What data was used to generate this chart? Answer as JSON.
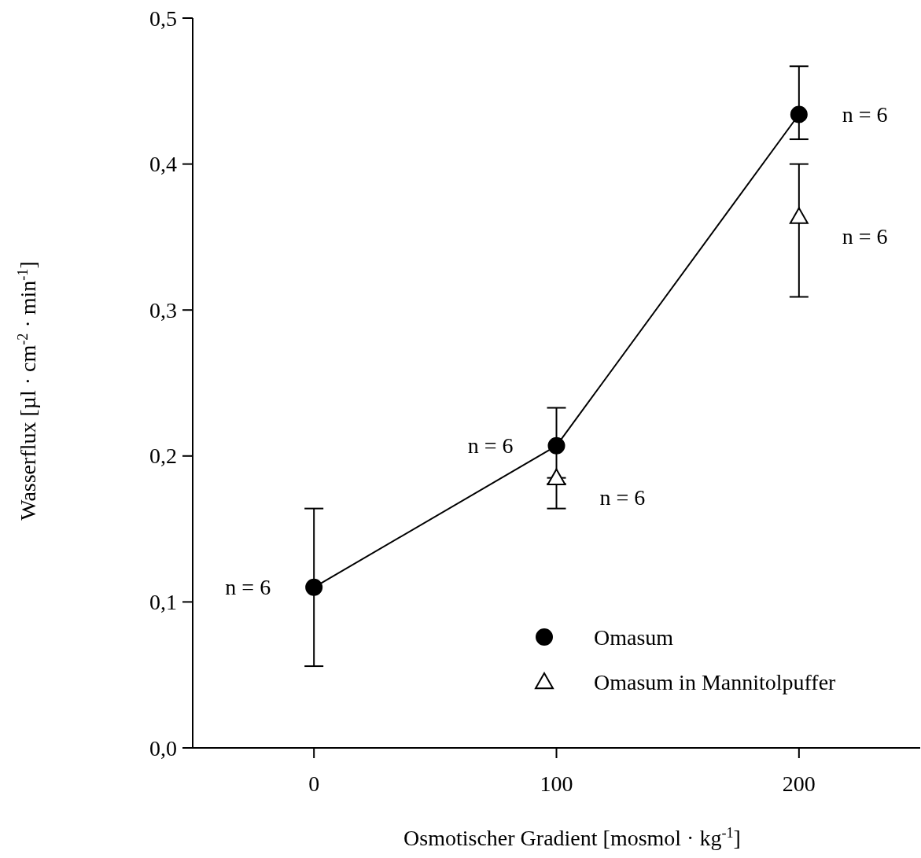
{
  "chart_data": {
    "type": "line",
    "xlabel": "Osmotischer Gradient [mosmol · kg$^{-1}$]",
    "ylabel": "Wasserflux [µl · cm$^{-2}$ · min$^{-1}$]",
    "xlim": [
      -50,
      250
    ],
    "xticks": [
      0,
      100,
      200
    ],
    "ylim": [
      0,
      0.5
    ],
    "yticks": [
      {
        "value": 0,
        "label": "0,0"
      },
      {
        "value": 0.1,
        "label": "0,1"
      },
      {
        "value": 0.2,
        "label": "0,2"
      },
      {
        "value": 0.3,
        "label": "0,3"
      },
      {
        "value": 0.4,
        "label": "0,4"
      },
      {
        "value": 0.5,
        "label": "0,5"
      }
    ],
    "grid": false,
    "legend": "bottom right",
    "series": [
      {
        "name": "Omasum",
        "marker": "circle",
        "color": "#000000",
        "x": [
          0,
          100,
          200
        ],
        "values": [
          0.11,
          0.207,
          0.434
        ],
        "errors": [
          [
            0.056,
            0.164
          ],
          [
            0.181,
            0.233
          ],
          [
            0.417,
            0.467
          ]
        ]
      },
      {
        "name": "Omasum in Mannitolpuffer",
        "type": "scatter",
        "marker": "triangle",
        "color": "#ffffff",
        "x": [
          100,
          200
        ],
        "values": [
          0.185,
          0.364
        ],
        "errors": [
          [
            0.164,
            0.185
          ],
          [
            0.309,
            0.4
          ]
        ]
      }
    ],
    "annotations": [
      {
        "text": "n = 6",
        "x": 0,
        "y": 0.11
      },
      {
        "text": "n = 6",
        "x": 100,
        "y": 0.207
      },
      {
        "text": "n = 6",
        "x": 100,
        "y": 0.185
      },
      {
        "text": "n = 6",
        "x": 200,
        "y": 0.434
      },
      {
        "text": "n = 6",
        "x": 200,
        "y": 0.364
      }
    ]
  }
}
